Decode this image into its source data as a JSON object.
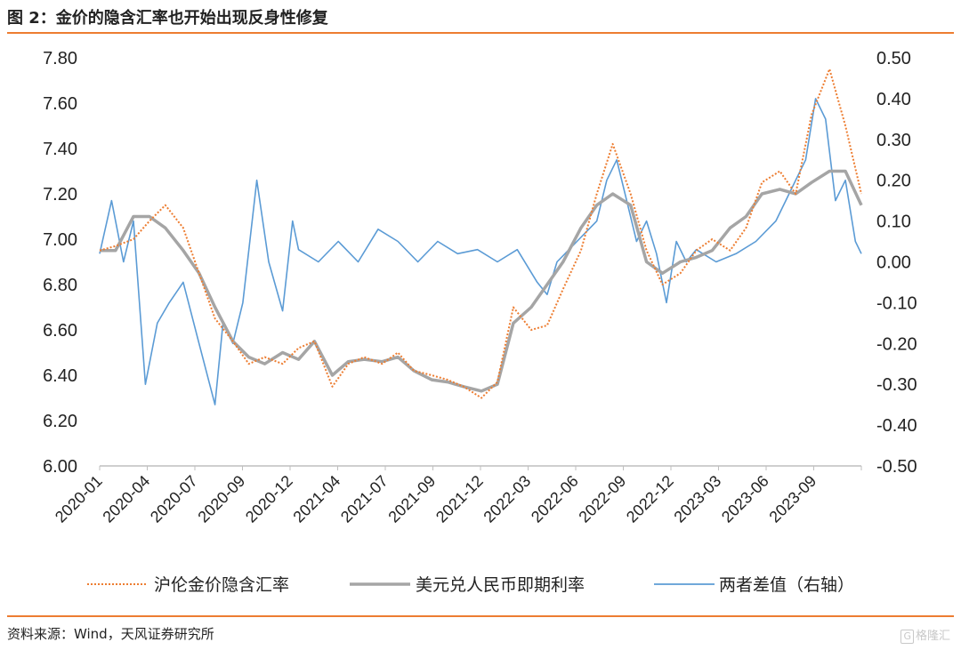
{
  "header": {
    "title": "图 2：金价的隐含汇率也开始出现反身性修复"
  },
  "footer": {
    "source": "资料来源：Wind，天风证券研究所",
    "logo_text": "格隆汇"
  },
  "colors": {
    "orange": "#ED7D31",
    "gray": "#A5A5A5",
    "blue": "#5B9BD5",
    "axis": "#BFBFBF"
  },
  "chart_data": {
    "type": "line",
    "title": "图 2：金价的隐含汇率也开始出现反身性修复",
    "x_categories": [
      "2020-01",
      "2020-04",
      "2020-07",
      "2020-09",
      "2020-12",
      "2021-04",
      "2021-07",
      "2021-09",
      "2021-12",
      "2022-03",
      "2022-06",
      "2022-09",
      "2022-12",
      "2023-03",
      "2023-06",
      "2023-09"
    ],
    "y_left": {
      "min": 6.0,
      "max": 7.8,
      "step": 0.2,
      "tick_labels": [
        "6.00",
        "6.20",
        "6.40",
        "6.60",
        "6.80",
        "7.00",
        "7.20",
        "7.40",
        "7.60",
        "7.80"
      ]
    },
    "y_right": {
      "min": -0.5,
      "max": 0.5,
      "step": 0.1,
      "tick_labels": [
        "-0.50",
        "-0.40",
        "-0.30",
        "-0.20",
        "-0.10",
        "0.00",
        "0.10",
        "0.20",
        "0.30",
        "0.40",
        "0.50"
      ]
    },
    "grid": false,
    "legend_position": "bottom",
    "series": [
      {
        "name": "沪伦金价隐含汇率",
        "axis": "left",
        "style": "dotted",
        "color": "#ED7D31",
        "x": [
          2020.0,
          2020.08,
          2020.17,
          2020.25,
          2020.33,
          2020.42,
          2020.5,
          2020.58,
          2020.67,
          2020.75,
          2020.83,
          2020.92,
          2021.0,
          2021.08,
          2021.17,
          2021.25,
          2021.33,
          2021.42,
          2021.5,
          2021.58,
          2021.67,
          2021.75,
          2021.83,
          2021.92,
          2022.0,
          2022.08,
          2022.17,
          2022.25,
          2022.33,
          2022.42,
          2022.5,
          2022.58,
          2022.67,
          2022.75,
          2022.83,
          2022.92,
          2023.0,
          2023.08,
          2023.17,
          2023.25,
          2023.33,
          2023.42,
          2023.5,
          2023.58,
          2023.67,
          2023.75,
          2023.83
        ],
        "y": [
          6.95,
          6.97,
          7.0,
          7.08,
          7.15,
          7.05,
          6.85,
          6.65,
          6.55,
          6.45,
          6.48,
          6.45,
          6.52,
          6.55,
          6.35,
          6.45,
          6.48,
          6.45,
          6.5,
          6.42,
          6.4,
          6.38,
          6.35,
          6.3,
          6.37,
          6.7,
          6.6,
          6.62,
          6.78,
          6.95,
          7.2,
          7.42,
          7.2,
          6.95,
          6.8,
          6.85,
          6.95,
          7.0,
          6.95,
          7.05,
          7.25,
          7.3,
          7.2,
          7.55,
          7.75,
          7.5,
          7.2
        ]
      },
      {
        "name": "美元兑人民币即期利率",
        "axis": "left",
        "style": "solid",
        "color": "#A5A5A5",
        "x": [
          2020.0,
          2020.08,
          2020.17,
          2020.25,
          2020.33,
          2020.42,
          2020.5,
          2020.58,
          2020.67,
          2020.75,
          2020.83,
          2020.92,
          2021.0,
          2021.08,
          2021.17,
          2021.25,
          2021.33,
          2021.42,
          2021.5,
          2021.58,
          2021.67,
          2021.75,
          2021.83,
          2021.92,
          2022.0,
          2022.08,
          2022.17,
          2022.25,
          2022.33,
          2022.42,
          2022.5,
          2022.58,
          2022.67,
          2022.75,
          2022.83,
          2022.92,
          2023.0,
          2023.08,
          2023.17,
          2023.25,
          2023.33,
          2023.42,
          2023.5,
          2023.58,
          2023.67,
          2023.75,
          2023.83
        ],
        "y": [
          6.95,
          6.95,
          7.1,
          7.1,
          7.05,
          6.95,
          6.85,
          6.7,
          6.55,
          6.48,
          6.45,
          6.5,
          6.47,
          6.55,
          6.4,
          6.46,
          6.47,
          6.46,
          6.48,
          6.42,
          6.38,
          6.37,
          6.35,
          6.33,
          6.36,
          6.63,
          6.7,
          6.8,
          6.9,
          7.05,
          7.15,
          7.2,
          7.15,
          6.9,
          6.85,
          6.9,
          6.92,
          6.95,
          7.05,
          7.1,
          7.2,
          7.22,
          7.2,
          7.25,
          7.3,
          7.3,
          7.15
        ]
      },
      {
        "name": "两者差值（右轴）",
        "axis": "right",
        "style": "solid",
        "color": "#5B9BD5",
        "x": [
          2020.0,
          2020.06,
          2020.12,
          2020.17,
          2020.23,
          2020.29,
          2020.35,
          2020.42,
          2020.5,
          2020.58,
          2020.62,
          2020.67,
          2020.72,
          2020.79,
          2020.85,
          2020.92,
          2020.97,
          2021.0,
          2021.1,
          2021.2,
          2021.3,
          2021.4,
          2021.5,
          2021.6,
          2021.7,
          2021.8,
          2021.9,
          2022.0,
          2022.1,
          2022.2,
          2022.25,
          2022.3,
          2022.4,
          2022.5,
          2022.55,
          2022.6,
          2022.65,
          2022.7,
          2022.75,
          2022.8,
          2022.85,
          2022.9,
          2022.95,
          2023.0,
          2023.1,
          2023.2,
          2023.3,
          2023.4,
          2023.45,
          2023.5,
          2023.55,
          2023.6,
          2023.65,
          2023.7,
          2023.75,
          2023.8,
          2023.83
        ],
        "y": [
          0.02,
          0.15,
          0.0,
          0.1,
          -0.3,
          -0.15,
          -0.1,
          -0.05,
          -0.2,
          -0.35,
          -0.15,
          -0.2,
          -0.1,
          0.2,
          0.0,
          -0.12,
          0.1,
          0.03,
          0.0,
          0.05,
          0.0,
          0.08,
          0.05,
          0.0,
          0.05,
          0.02,
          0.03,
          0.0,
          0.03,
          -0.05,
          -0.08,
          0.0,
          0.05,
          0.1,
          0.2,
          0.25,
          0.15,
          0.05,
          0.1,
          0.02,
          -0.1,
          0.05,
          0.0,
          0.03,
          0.0,
          0.02,
          0.05,
          0.1,
          0.15,
          0.2,
          0.25,
          0.4,
          0.35,
          0.15,
          0.2,
          0.05,
          0.02
        ]
      }
    ]
  }
}
